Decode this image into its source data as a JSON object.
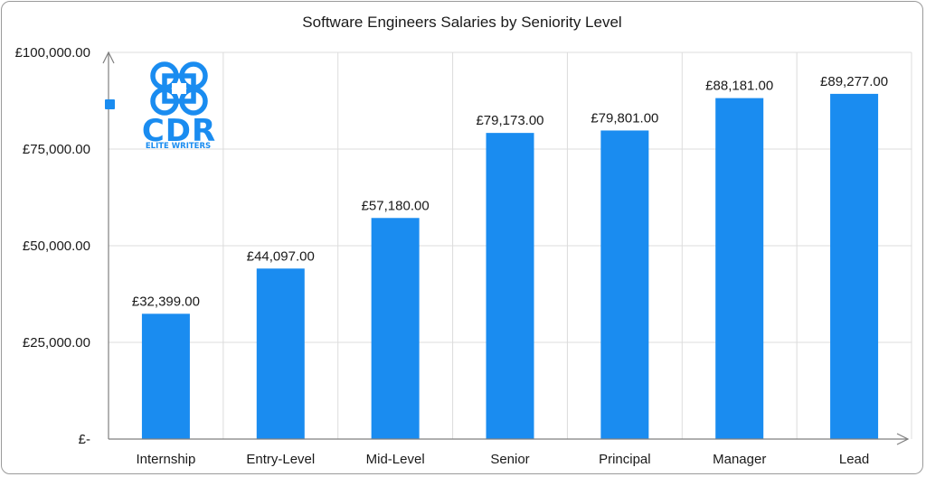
{
  "chart_data": {
    "type": "bar",
    "title": "Software Engineers Salaries by Seniority Level",
    "categories": [
      "Internship",
      "Entry-Level",
      "Mid-Level",
      "Senior",
      "Principal",
      "Manager",
      "Lead"
    ],
    "values": [
      32399,
      44097,
      57180,
      79173,
      79801,
      88181,
      89277
    ],
    "data_labels": [
      "£32,399.00",
      "£44,097.00",
      "£57,180.00",
      "£79,173.00",
      "£79,801.00",
      "£88,181.00",
      "£89,277.00"
    ],
    "ylim": [
      0,
      100000
    ],
    "yticks": [
      0,
      25000,
      50000,
      75000,
      100000
    ],
    "ytick_labels": [
      "£-",
      "£25,000.00",
      "£50,000.00",
      "£75,000.00",
      "£100,000.00"
    ],
    "bar_color": "#1a8cf0",
    "grid": true
  },
  "logo": {
    "name": "CDR",
    "tagline": "ELITE WRITERS",
    "color": "#1a8cf0"
  }
}
